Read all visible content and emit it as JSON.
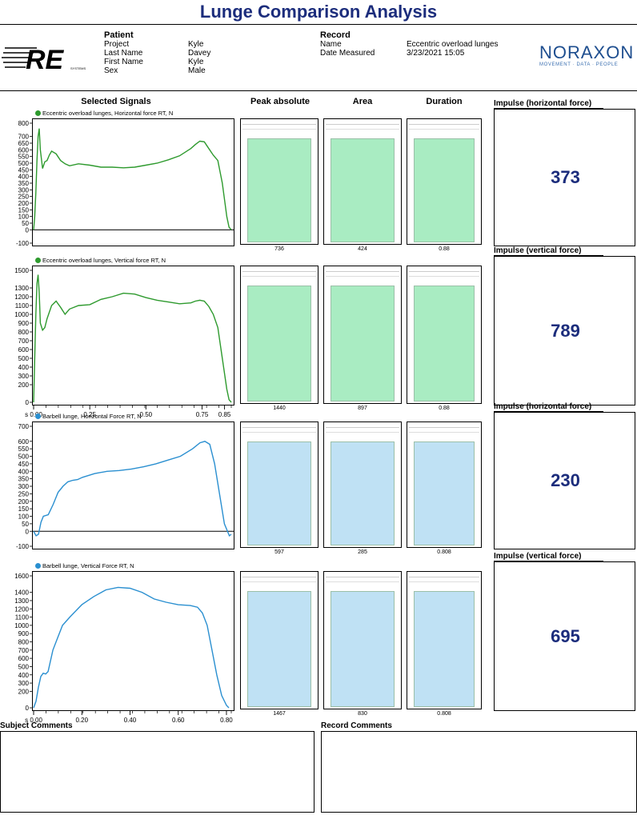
{
  "title": "Lunge Comparison Analysis",
  "patient": {
    "heading": "Patient",
    "rows": [
      {
        "label": "Project",
        "value": "Kyle"
      },
      {
        "label": "Last Name",
        "value": "Davey"
      },
      {
        "label": "First Name",
        "value": "Kyle"
      },
      {
        "label": "Sex",
        "value": "Male"
      }
    ]
  },
  "record": {
    "heading": "Record",
    "rows": [
      {
        "label": "Name",
        "value": "Eccentric overload lunges"
      },
      {
        "label": "Date Measured",
        "value": "3/23/2021 15:05"
      }
    ]
  },
  "logos": {
    "re": "RE",
    "re_sub": "SYSTEMS",
    "noraxon": "NORAXON",
    "noraxon_tagline": "MOVEMENT · DATA · PEOPLE"
  },
  "columns": {
    "signals": "Selected Signals",
    "peak": "Peak absolute",
    "area": "Area",
    "duration": "Duration"
  },
  "comments": {
    "subject": "Subject Comments",
    "record": "Record Comments"
  },
  "colors": {
    "green_line": "#2e9a2e",
    "green_bar": "#a9ecc2",
    "blue_line": "#2a8fd0",
    "blue_bar": "#bfe1f4",
    "title_blue": "#1c2d7c"
  },
  "chart_data": [
    {
      "type": "line",
      "title": "Eccentric overload lunges, Horizontal force RT, N",
      "legend_color": "#2e9a2e",
      "ylim": [
        -100,
        800
      ],
      "y_ticks": [
        "800",
        "700",
        "650",
        "600",
        "550",
        "500",
        "450",
        "400",
        "350",
        "300",
        "250",
        "200",
        "150",
        "100",
        "50",
        "0",
        "-100"
      ],
      "xlim": [
        0,
        0.88
      ],
      "x_ticks": [],
      "x": [
        0,
        0.005,
        0.01,
        0.015,
        0.02,
        0.025,
        0.03,
        0.04,
        0.05,
        0.06,
        0.07,
        0.08,
        0.1,
        0.12,
        0.14,
        0.16,
        0.2,
        0.25,
        0.3,
        0.35,
        0.4,
        0.45,
        0.5,
        0.55,
        0.6,
        0.65,
        0.7,
        0.72,
        0.74,
        0.76,
        0.78,
        0.8,
        0.82,
        0.84,
        0.86,
        0.87,
        0.88
      ],
      "y": [
        0,
        100,
        280,
        520,
        700,
        760,
        600,
        460,
        510,
        520,
        560,
        590,
        570,
        520,
        495,
        480,
        495,
        485,
        470,
        470,
        465,
        470,
        485,
        500,
        525,
        555,
        610,
        640,
        665,
        660,
        610,
        560,
        520,
        350,
        100,
        20,
        0
      ],
      "peak_absolute": "736",
      "area": "424",
      "duration": "0.88",
      "bar_color": "#a9ecc2",
      "impulse_label": "Impulse (horizontal force)",
      "impulse_value": "373"
    },
    {
      "type": "line",
      "title": "Eccentric overload lunges, Vertical force RT, N",
      "legend_color": "#2e9a2e",
      "ylim": [
        0,
        1500
      ],
      "y_ticks": [
        "1500",
        "1300",
        "1200",
        "1100",
        "1000",
        "900",
        "800",
        "700",
        "600",
        "500",
        "400",
        "300",
        "200",
        "0"
      ],
      "xlim": [
        0,
        0.88
      ],
      "x_ticks": [
        "s 0.00",
        "0.25",
        "0.50",
        "0.75",
        "0.85"
      ],
      "x_tick_values": [
        0,
        0.25,
        0.5,
        0.75,
        0.85
      ],
      "x": [
        0,
        0.005,
        0.01,
        0.015,
        0.02,
        0.025,
        0.03,
        0.04,
        0.05,
        0.06,
        0.08,
        0.1,
        0.12,
        0.14,
        0.16,
        0.2,
        0.25,
        0.3,
        0.35,
        0.4,
        0.45,
        0.5,
        0.55,
        0.6,
        0.65,
        0.7,
        0.72,
        0.74,
        0.76,
        0.78,
        0.8,
        0.82,
        0.84,
        0.86,
        0.87,
        0.88
      ],
      "y": [
        0,
        500,
        1000,
        1350,
        1450,
        1250,
        900,
        820,
        850,
        950,
        1100,
        1150,
        1080,
        1000,
        1060,
        1100,
        1110,
        1170,
        1200,
        1240,
        1230,
        1190,
        1160,
        1140,
        1120,
        1130,
        1150,
        1160,
        1150,
        1090,
        1000,
        850,
        500,
        150,
        30,
        0
      ],
      "peak_absolute": "1440",
      "area": "897",
      "duration": "0.88",
      "bar_color": "#a9ecc2",
      "impulse_label": "Impulse (vertical force)",
      "impulse_value": "789"
    },
    {
      "type": "line",
      "title": "Barbell lunge, Horizontal Force RT, N",
      "legend_color": "#2a8fd0",
      "ylim": [
        -100,
        700
      ],
      "y_ticks": [
        "700",
        "600",
        "550",
        "500",
        "450",
        "400",
        "350",
        "300",
        "250",
        "200",
        "150",
        "100",
        "50",
        "0",
        "-100"
      ],
      "xlim": [
        0,
        0.808
      ],
      "x_ticks": [],
      "x": [
        0,
        0.01,
        0.02,
        0.03,
        0.04,
        0.06,
        0.08,
        0.1,
        0.12,
        0.14,
        0.16,
        0.18,
        0.2,
        0.25,
        0.3,
        0.35,
        0.4,
        0.45,
        0.5,
        0.55,
        0.6,
        0.65,
        0.68,
        0.7,
        0.72,
        0.74,
        0.76,
        0.78,
        0.8,
        0.808
      ],
      "y": [
        0,
        -30,
        -20,
        60,
        100,
        110,
        180,
        260,
        300,
        330,
        340,
        345,
        360,
        385,
        400,
        405,
        415,
        430,
        450,
        475,
        500,
        550,
        590,
        600,
        580,
        450,
        250,
        50,
        -30,
        -20
      ],
      "peak_absolute": "597",
      "area": "285",
      "duration": "0.808",
      "bar_color": "#bfe1f4",
      "impulse_label": "Impulse (horizontal force)",
      "impulse_value": "230"
    },
    {
      "type": "line",
      "title": "Barbell lunge, Vertical Force RT, N",
      "legend_color": "#2a8fd0",
      "ylim": [
        0,
        1600
      ],
      "y_ticks": [
        "1600",
        "1400",
        "1300",
        "1200",
        "1100",
        "1000",
        "900",
        "800",
        "700",
        "600",
        "500",
        "400",
        "300",
        "200",
        "0"
      ],
      "xlim": [
        0,
        0.82
      ],
      "x_ticks": [
        "s 0.00",
        "0.20",
        "0.40",
        "0.60",
        "0.80"
      ],
      "x_tick_values": [
        0,
        0.2,
        0.4,
        0.6,
        0.8
      ],
      "x": [
        0,
        0.01,
        0.02,
        0.03,
        0.04,
        0.05,
        0.06,
        0.08,
        0.1,
        0.12,
        0.15,
        0.2,
        0.25,
        0.3,
        0.35,
        0.4,
        0.45,
        0.5,
        0.55,
        0.6,
        0.65,
        0.68,
        0.7,
        0.72,
        0.74,
        0.76,
        0.78,
        0.8,
        0.81
      ],
      "y": [
        0,
        80,
        250,
        380,
        420,
        410,
        440,
        700,
        850,
        1000,
        1100,
        1250,
        1350,
        1430,
        1460,
        1450,
        1400,
        1320,
        1280,
        1250,
        1240,
        1220,
        1150,
        1000,
        700,
        400,
        150,
        30,
        0
      ],
      "peak_absolute": "1467",
      "area": "830",
      "duration": "0.808",
      "bar_color": "#bfe1f4",
      "impulse_label": "Impulse (vertical force)",
      "impulse_value": "695"
    }
  ]
}
